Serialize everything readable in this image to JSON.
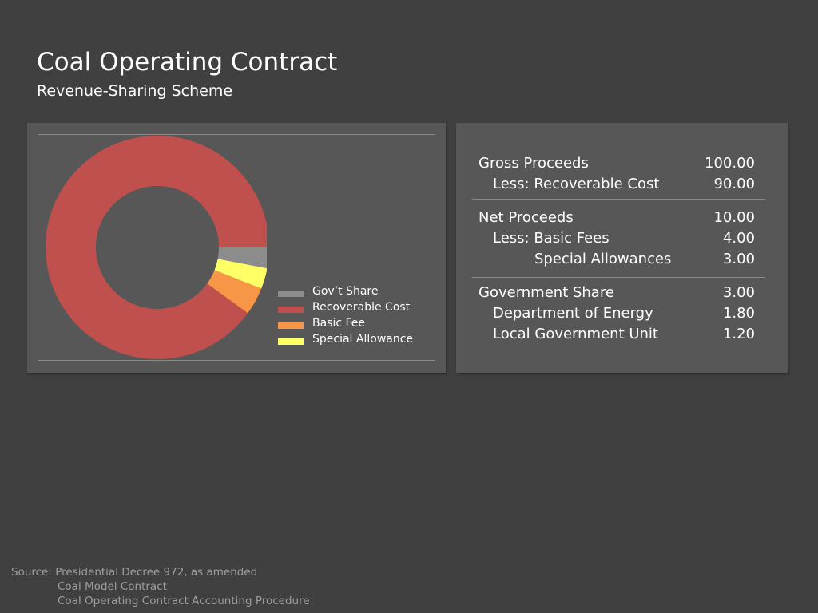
{
  "header": {
    "title": "Coal Operating Contract",
    "subtitle": "Revenue-Sharing Scheme"
  },
  "chart_data": {
    "type": "pie",
    "style": "donut",
    "categories": [
      "Gov’t Share",
      "Recoverable Cost",
      "Basic Fee",
      "Special Allowance"
    ],
    "values": [
      3,
      90,
      4,
      3
    ],
    "colors": [
      "#8c8c8c",
      "#c0504d",
      "#f79646",
      "#ffff66"
    ],
    "legend_position": "right"
  },
  "table": {
    "groups": [
      {
        "rows": [
          {
            "label": "Gross Proceeds",
            "value": "100.00",
            "indent": 0
          },
          {
            "label": "Less: Recoverable Cost",
            "value": "90.00",
            "indent": 1
          }
        ]
      },
      {
        "rows": [
          {
            "label": "Net Proceeds",
            "value": "10.00",
            "indent": 0
          },
          {
            "label": "Less: Basic Fees",
            "value": "4.00",
            "indent": 1
          },
          {
            "label": "Special Allowances",
            "value": "3.00",
            "indent": 2
          }
        ]
      },
      {
        "rows": [
          {
            "label": "Government Share",
            "value": "3.00",
            "indent": 0
          },
          {
            "label": "Department of Energy",
            "value": "1.80",
            "indent": 1
          },
          {
            "label": "Local Government Unit",
            "value": "1.20",
            "indent": 1
          }
        ]
      }
    ]
  },
  "source": {
    "line1": "Source: Presidential Decree  972, as amended",
    "line2": "Coal Model Contract",
    "line3": "Coal Operating Contract Accounting Procedure"
  }
}
